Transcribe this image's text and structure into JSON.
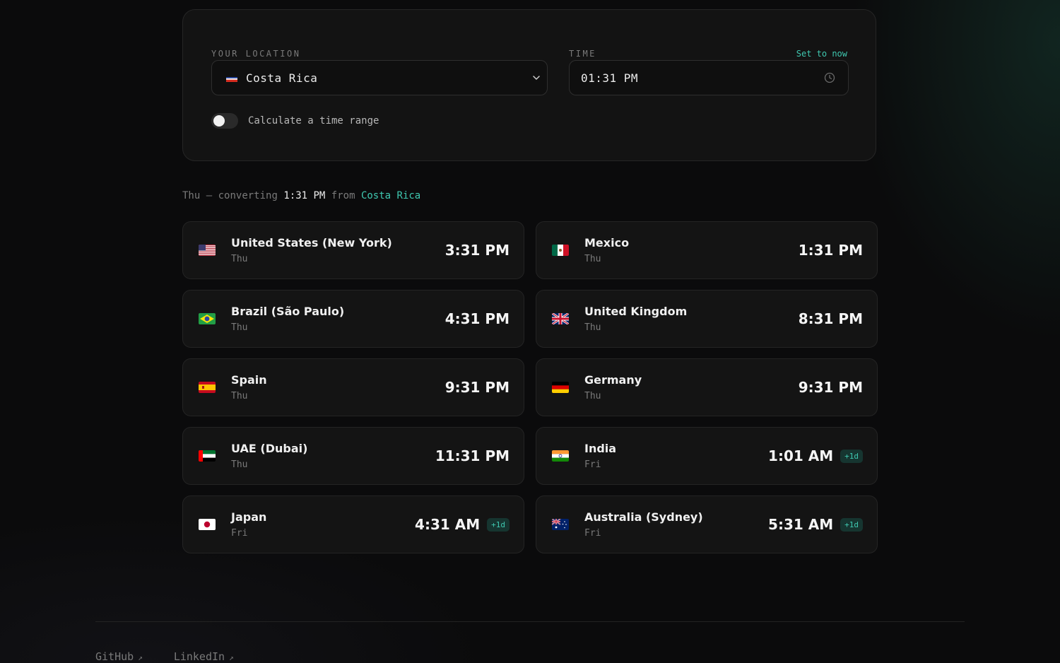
{
  "location": {
    "label": "YOUR LOCATION",
    "selected_country": "Costa Rica",
    "flag_icon": "costa-rica-flag"
  },
  "time": {
    "label": "TIME",
    "value": "01:31 PM",
    "set_now_label": "Set to now"
  },
  "range_toggle": {
    "label": "Calculate a time range",
    "enabled": false
  },
  "summary": {
    "day": "Thu",
    "dash": "—",
    "converting_word": "converting",
    "time": "1:31 PM",
    "from_word": "from",
    "country": "Costa Rica"
  },
  "conversions": [
    {
      "country": "United States (New York)",
      "day": "Thu",
      "time": "3:31 PM",
      "badge": "",
      "flag": "us-flag"
    },
    {
      "country": "Mexico",
      "day": "Thu",
      "time": "1:31 PM",
      "badge": "",
      "flag": "mexico-flag"
    },
    {
      "country": "Brazil (São Paulo)",
      "day": "Thu",
      "time": "4:31 PM",
      "badge": "",
      "flag": "brazil-flag"
    },
    {
      "country": "United Kingdom",
      "day": "Thu",
      "time": "8:31 PM",
      "badge": "",
      "flag": "uk-flag"
    },
    {
      "country": "Spain",
      "day": "Thu",
      "time": "9:31 PM",
      "badge": "",
      "flag": "spain-flag"
    },
    {
      "country": "Germany",
      "day": "Thu",
      "time": "9:31 PM",
      "badge": "",
      "flag": "germany-flag"
    },
    {
      "country": "UAE (Dubai)",
      "day": "Thu",
      "time": "11:31 PM",
      "badge": "",
      "flag": "uae-flag"
    },
    {
      "country": "India",
      "day": "Fri",
      "time": "1:01 AM",
      "badge": "+1d",
      "flag": "india-flag"
    },
    {
      "country": "Japan",
      "day": "Fri",
      "time": "4:31 AM",
      "badge": "+1d",
      "flag": "japan-flag"
    },
    {
      "country": "Australia (Sydney)",
      "day": "Fri",
      "time": "5:31 AM",
      "badge": "+1d",
      "flag": "australia-flag"
    }
  ],
  "footer": {
    "links": [
      {
        "label": "GitHub",
        "arrow": "↗"
      },
      {
        "label": "LinkedIn",
        "arrow": "↗"
      }
    ]
  },
  "colors": {
    "background": "#0b0b0c",
    "accent": "#3fc8b0",
    "card": "#141414"
  }
}
